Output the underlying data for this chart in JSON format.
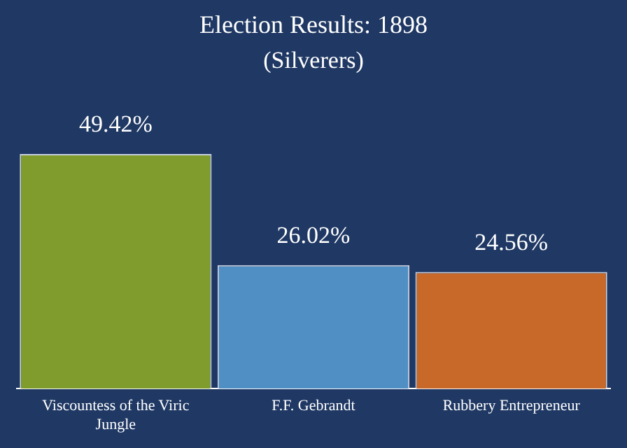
{
  "chart_data": {
    "type": "bar",
    "title": "Election Results: 1898",
    "subtitle": "(Silverers)",
    "categories": [
      "Viscountess of the Viric Jungle",
      "F.F. Gebrandt",
      "Rubbery Entrepreneur"
    ],
    "values": [
      49.42,
      26.02,
      24.56
    ],
    "colors": [
      "#7f9c2c",
      "#4f8fc4",
      "#c8692a"
    ],
    "value_labels": [
      "49.42%",
      "26.02%",
      "24.56%"
    ],
    "grid": false,
    "legend": false
  }
}
